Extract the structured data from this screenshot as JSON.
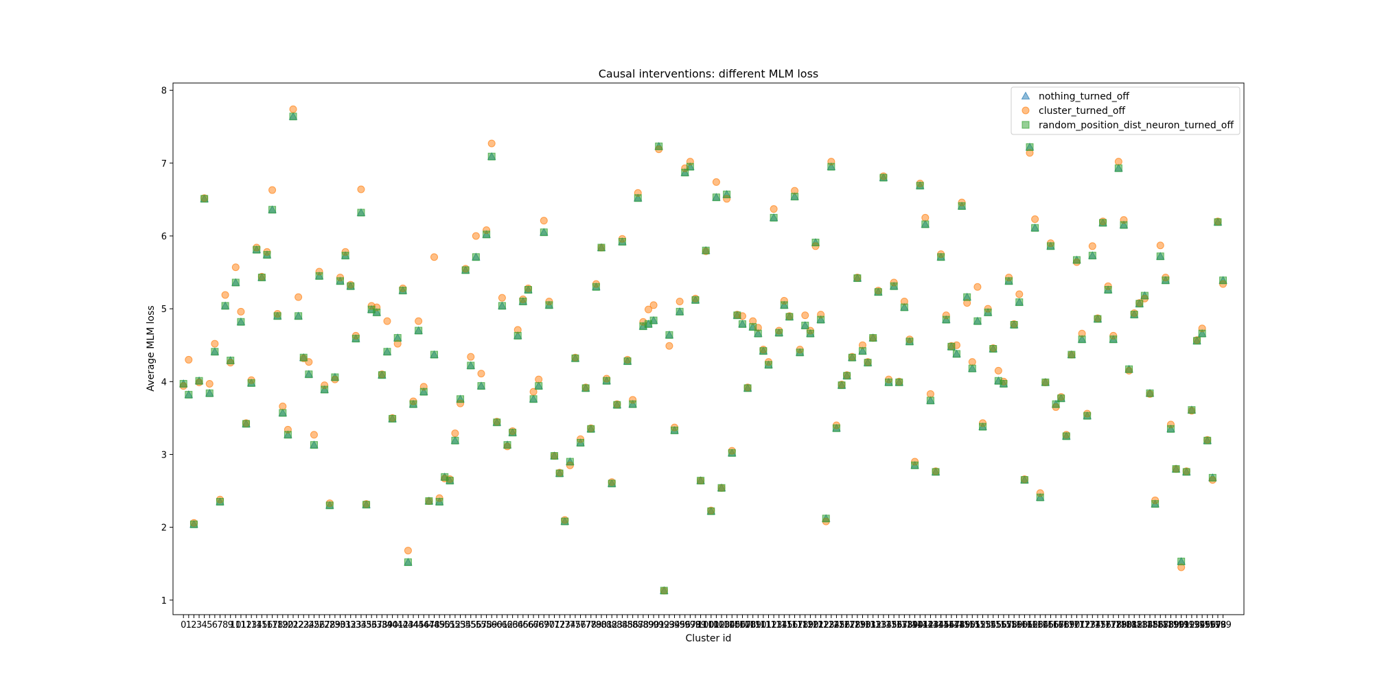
{
  "chart_data": {
    "type": "scatter",
    "title": "Causal interventions: different MLM loss",
    "xlabel": "Cluster id",
    "ylabel": "Average MLM loss",
    "xlim": [
      -2,
      203
    ],
    "ylim": [
      0.8,
      8.1
    ],
    "yticks": [
      1,
      2,
      3,
      4,
      5,
      6,
      7,
      8
    ],
    "x": [
      0,
      1,
      2,
      3,
      4,
      5,
      6,
      7,
      8,
      9,
      10,
      11,
      12,
      13,
      14,
      15,
      16,
      17,
      18,
      19,
      20,
      21,
      22,
      23,
      24,
      25,
      26,
      27,
      28,
      29,
      30,
      31,
      32,
      33,
      34,
      35,
      36,
      37,
      38,
      39,
      40,
      41,
      42,
      43,
      44,
      45,
      46,
      47,
      48,
      49,
      50,
      51,
      52,
      53,
      54,
      55,
      56,
      57,
      58,
      59,
      60,
      61,
      62,
      63,
      64,
      65,
      66,
      67,
      68,
      69,
      70,
      71,
      72,
      73,
      74,
      75,
      76,
      77,
      78,
      79,
      80,
      81,
      82,
      83,
      84,
      85,
      86,
      87,
      88,
      89,
      90,
      91,
      92,
      93,
      94,
      95,
      96,
      97,
      98,
      99,
      100,
      101,
      102,
      103,
      104,
      105,
      106,
      107,
      108,
      109,
      110,
      111,
      112,
      113,
      114,
      115,
      116,
      117,
      118,
      119,
      120,
      121,
      122,
      123,
      124,
      125,
      126,
      127,
      128,
      129,
      130,
      131,
      132,
      133,
      134,
      135,
      136,
      137,
      138,
      139,
      140,
      141,
      142,
      143,
      144,
      145,
      146,
      147,
      148,
      149,
      150,
      151,
      152,
      153,
      154,
      155,
      156,
      157,
      158,
      159,
      160,
      161,
      162,
      163,
      164,
      165,
      166,
      167,
      168,
      169,
      170,
      171,
      172,
      173,
      174,
      175,
      176,
      177,
      178,
      179,
      180,
      181,
      182,
      183,
      184,
      185,
      186,
      187,
      188,
      189,
      190,
      191,
      192,
      193,
      194,
      195,
      196,
      197,
      198,
      199
    ],
    "series": [
      {
        "name": "nothing_turned_off",
        "marker": "triangle",
        "color": "#1f77b4",
        "values": [
          3.97,
          3.82,
          2.04,
          4.01,
          6.51,
          3.84,
          4.41,
          2.35,
          5.04,
          4.29,
          5.36,
          4.82,
          3.42,
          3.98,
          5.81,
          5.43,
          5.74,
          6.36,
          4.9,
          3.57,
          3.27,
          7.64,
          4.9,
          4.33,
          4.1,
          3.13,
          5.45,
          3.89,
          2.3,
          4.06,
          5.38,
          5.73,
          5.31,
          4.59,
          6.32,
          2.31,
          4.99,
          4.95,
          4.09,
          4.41,
          3.49,
          4.6,
          5.25,
          1.52,
          3.69,
          4.7,
          3.86,
          2.36,
          4.37,
          2.35,
          2.69,
          2.64,
          3.19,
          3.76,
          5.53,
          4.22,
          5.71,
          3.94,
          6.02,
          7.09,
          3.44,
          5.04,
          3.13,
          3.3,
          4.63,
          5.1,
          5.26,
          3.76,
          3.94,
          6.05,
          5.05,
          2.98,
          2.74,
          2.08,
          2.9,
          4.32,
          3.16,
          3.91,
          3.35,
          5.3,
          5.84,
          4.01,
          2.6,
          3.68,
          5.92,
          4.28,
          3.69,
          6.52,
          4.76,
          4.79,
          4.84,
          7.23,
          1.13,
          4.64,
          3.33,
          4.96,
          6.87,
          6.95,
          5.12,
          2.64,
          5.8,
          2.22,
          6.53,
          2.54,
          6.57,
          3.02,
          4.91,
          4.79,
          3.91,
          4.75,
          4.66,
          4.42,
          4.23,
          6.25,
          4.67,
          5.05,
          4.89,
          6.54,
          4.4,
          4.77,
          4.66,
          5.91,
          4.85,
          2.12,
          6.95,
          3.36,
          3.95,
          4.08,
          4.33,
          5.42,
          4.42,
          4.26,
          4.6,
          5.23,
          6.8,
          3.99,
          5.31,
          3.99,
          5.02,
          4.55,
          2.85,
          6.69,
          6.16,
          3.74,
          2.76,
          5.71,
          4.85,
          4.48,
          4.38,
          6.41,
          5.16,
          4.18,
          4.83,
          3.38,
          4.95,
          4.45,
          4.01,
          3.97,
          5.38,
          4.78,
          5.09,
          2.65,
          7.22,
          6.11,
          2.41,
          3.99,
          5.86,
          3.69,
          3.77,
          3.25,
          4.37,
          5.67,
          4.58,
          3.53,
          5.73,
          4.86,
          6.18,
          5.26,
          4.58,
          6.93,
          6.15,
          4.17,
          4.92,
          5.07,
          5.18,
          3.84,
          2.32,
          5.72,
          5.39,
          3.35,
          2.8,
          1.53,
          2.76,
          3.61,
          4.56,
          4.66,
          3.19,
          2.68,
          6.19,
          5.39
        ]
      },
      {
        "name": "cluster_turned_off",
        "marker": "circle",
        "color": "#ff7f0e",
        "values": [
          3.94,
          4.3,
          2.06,
          3.99,
          6.52,
          3.97,
          4.52,
          2.38,
          5.19,
          4.26,
          5.57,
          4.96,
          3.43,
          4.02,
          5.84,
          5.44,
          5.78,
          6.63,
          4.93,
          3.66,
          3.34,
          7.74,
          5.16,
          4.32,
          4.27,
          3.27,
          5.51,
          3.95,
          2.33,
          4.03,
          5.43,
          5.78,
          5.33,
          4.63,
          6.64,
          2.32,
          5.04,
          5.02,
          4.1,
          4.83,
          3.5,
          4.52,
          5.28,
          1.68,
          3.73,
          4.83,
          3.93,
          2.36,
          5.71,
          2.4,
          2.67,
          2.66,
          3.29,
          3.7,
          5.55,
          4.34,
          6.0,
          4.11,
          6.08,
          7.27,
          3.45,
          5.15,
          3.11,
          3.32,
          4.71,
          5.13,
          5.28,
          3.86,
          4.03,
          6.21,
          5.1,
          2.98,
          2.75,
          2.1,
          2.85,
          4.33,
          3.21,
          3.92,
          3.36,
          5.34,
          5.84,
          4.04,
          2.62,
          3.69,
          5.96,
          4.3,
          3.75,
          6.59,
          4.82,
          4.99,
          5.05,
          7.19,
          1.13,
          4.49,
          3.37,
          5.1,
          6.93,
          7.02,
          5.14,
          2.64,
          5.79,
          2.23,
          6.74,
          2.54,
          6.51,
          3.05,
          4.92,
          4.9,
          3.92,
          4.83,
          4.74,
          4.44,
          4.27,
          6.37,
          4.7,
          5.11,
          4.9,
          6.62,
          4.44,
          4.91,
          4.7,
          5.86,
          4.92,
          2.08,
          7.02,
          3.4,
          3.96,
          4.09,
          4.34,
          5.43,
          4.5,
          4.27,
          4.6,
          5.25,
          6.82,
          4.03,
          5.36,
          4.0,
          5.1,
          4.58,
          2.9,
          6.72,
          6.25,
          3.83,
          2.77,
          5.75,
          4.91,
          4.49,
          4.5,
          6.46,
          5.08,
          4.27,
          5.3,
          3.43,
          5.0,
          4.46,
          4.15,
          4.0,
          5.43,
          4.79,
          5.2,
          2.66,
          7.14,
          6.23,
          2.47,
          3.99,
          5.9,
          3.65,
          3.79,
          3.27,
          4.37,
          5.64,
          4.66,
          3.56,
          5.86,
          4.87,
          6.2,
          5.31,
          4.63,
          7.02,
          6.22,
          4.15,
          4.94,
          5.08,
          5.14,
          3.83,
          2.37,
          5.87,
          5.43,
          3.41,
          2.8,
          1.45,
          2.77,
          3.6,
          4.57,
          4.73,
          3.2,
          2.65,
          6.2,
          5.34
        ]
      },
      {
        "name": "random_position_dist_neuron_turned_off",
        "marker": "square",
        "color": "#2ca02c",
        "values": [
          3.97,
          3.82,
          2.04,
          4.01,
          6.51,
          3.84,
          4.41,
          2.35,
          5.04,
          4.29,
          5.36,
          4.82,
          3.42,
          3.98,
          5.81,
          5.43,
          5.74,
          6.36,
          4.9,
          3.57,
          3.27,
          7.64,
          4.9,
          4.33,
          4.1,
          3.13,
          5.45,
          3.89,
          2.3,
          4.06,
          5.38,
          5.73,
          5.31,
          4.59,
          6.32,
          2.31,
          4.99,
          4.95,
          4.09,
          4.41,
          3.49,
          4.6,
          5.25,
          1.52,
          3.69,
          4.7,
          3.86,
          2.36,
          4.37,
          2.35,
          2.69,
          2.64,
          3.19,
          3.76,
          5.53,
          4.22,
          5.71,
          3.94,
          6.02,
          7.09,
          3.44,
          5.04,
          3.13,
          3.3,
          4.63,
          5.1,
          5.26,
          3.76,
          3.94,
          6.05,
          5.05,
          2.98,
          2.74,
          2.08,
          2.9,
          4.32,
          3.16,
          3.91,
          3.35,
          5.3,
          5.84,
          4.01,
          2.6,
          3.68,
          5.92,
          4.28,
          3.69,
          6.52,
          4.76,
          4.79,
          4.84,
          7.23,
          1.13,
          4.64,
          3.33,
          4.96,
          6.87,
          6.95,
          5.12,
          2.64,
          5.8,
          2.22,
          6.53,
          2.54,
          6.57,
          3.02,
          4.91,
          4.79,
          3.91,
          4.75,
          4.66,
          4.42,
          4.23,
          6.25,
          4.67,
          5.05,
          4.89,
          6.54,
          4.4,
          4.77,
          4.66,
          5.91,
          4.85,
          2.12,
          6.95,
          3.36,
          3.95,
          4.08,
          4.33,
          5.42,
          4.42,
          4.26,
          4.6,
          5.23,
          6.8,
          3.99,
          5.31,
          3.99,
          5.02,
          4.55,
          2.85,
          6.69,
          6.16,
          3.74,
          2.76,
          5.71,
          4.85,
          4.48,
          4.38,
          6.41,
          5.16,
          4.18,
          4.83,
          3.38,
          4.95,
          4.45,
          4.01,
          3.97,
          5.38,
          4.78,
          5.09,
          2.65,
          7.22,
          6.11,
          2.41,
          3.99,
          5.86,
          3.69,
          3.77,
          3.25,
          4.37,
          5.67,
          4.58,
          3.53,
          5.73,
          4.86,
          6.18,
          5.26,
          4.58,
          6.93,
          6.15,
          4.17,
          4.92,
          5.07,
          5.18,
          3.84,
          2.32,
          5.72,
          5.39,
          3.35,
          2.8,
          1.53,
          2.76,
          3.61,
          4.56,
          4.66,
          3.19,
          2.68,
          6.19,
          5.39
        ]
      }
    ],
    "legend_position": "top-right",
    "grid": false
  }
}
